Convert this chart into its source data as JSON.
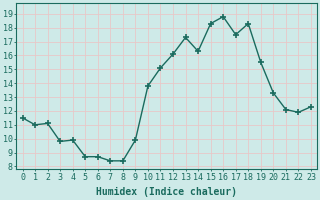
{
  "x": [
    0,
    1,
    2,
    3,
    4,
    5,
    6,
    7,
    8,
    9,
    10,
    11,
    12,
    13,
    14,
    15,
    16,
    17,
    18,
    19,
    20,
    21,
    22,
    23
  ],
  "y": [
    11.5,
    11.0,
    11.1,
    9.8,
    9.9,
    8.7,
    8.7,
    8.4,
    8.4,
    9.9,
    13.8,
    15.1,
    16.1,
    17.3,
    16.3,
    18.3,
    18.8,
    17.5,
    18.3,
    15.5,
    13.3,
    12.1,
    11.9,
    12.3
  ],
  "line_color": "#1a6b5e",
  "marker": "+",
  "marker_size": 4,
  "bg_color": "#ceeae8",
  "grid_color_major": "#e8c8c8",
  "grid_color_minor": "#e8c8c8",
  "xlabel": "Humidex (Indice chaleur)",
  "ylabel_ticks": [
    8,
    9,
    10,
    11,
    12,
    13,
    14,
    15,
    16,
    17,
    18,
    19
  ],
  "ylim": [
    7.8,
    19.8
  ],
  "xlim": [
    -0.5,
    23.5
  ],
  "tick_color": "#1a6b5e",
  "label_color": "#1a6b5e",
  "font_size": 6,
  "xlabel_fontsize": 7,
  "linewidth": 1.0
}
